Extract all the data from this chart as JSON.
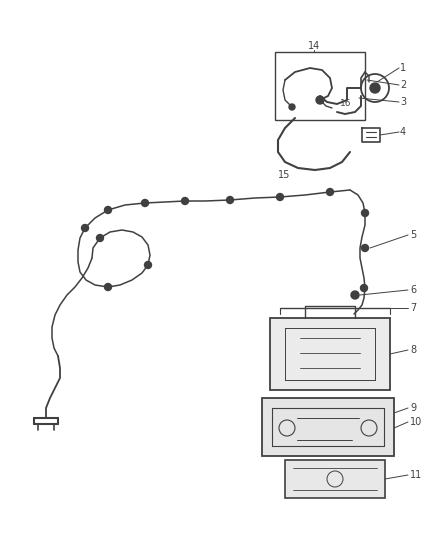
{
  "background_color": "#ffffff",
  "line_color": "#404040",
  "fig_width": 4.38,
  "fig_height": 5.33,
  "dpi": 100,
  "label_fs": 7.0,
  "small_label_fs": 6.5
}
